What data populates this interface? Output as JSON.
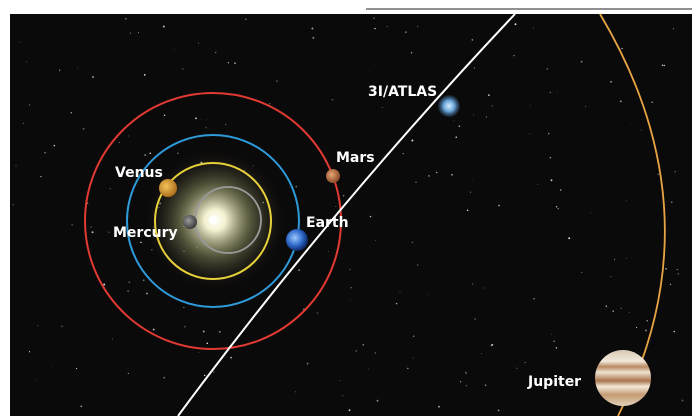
{
  "bodies": [
    {
      "label": "Venus"
    },
    {
      "label": "Mercury"
    },
    {
      "label": "Earth"
    },
    {
      "label": "Mars"
    },
    {
      "label": "3I/ATLAS"
    },
    {
      "label": "Jupiter"
    }
  ]
}
